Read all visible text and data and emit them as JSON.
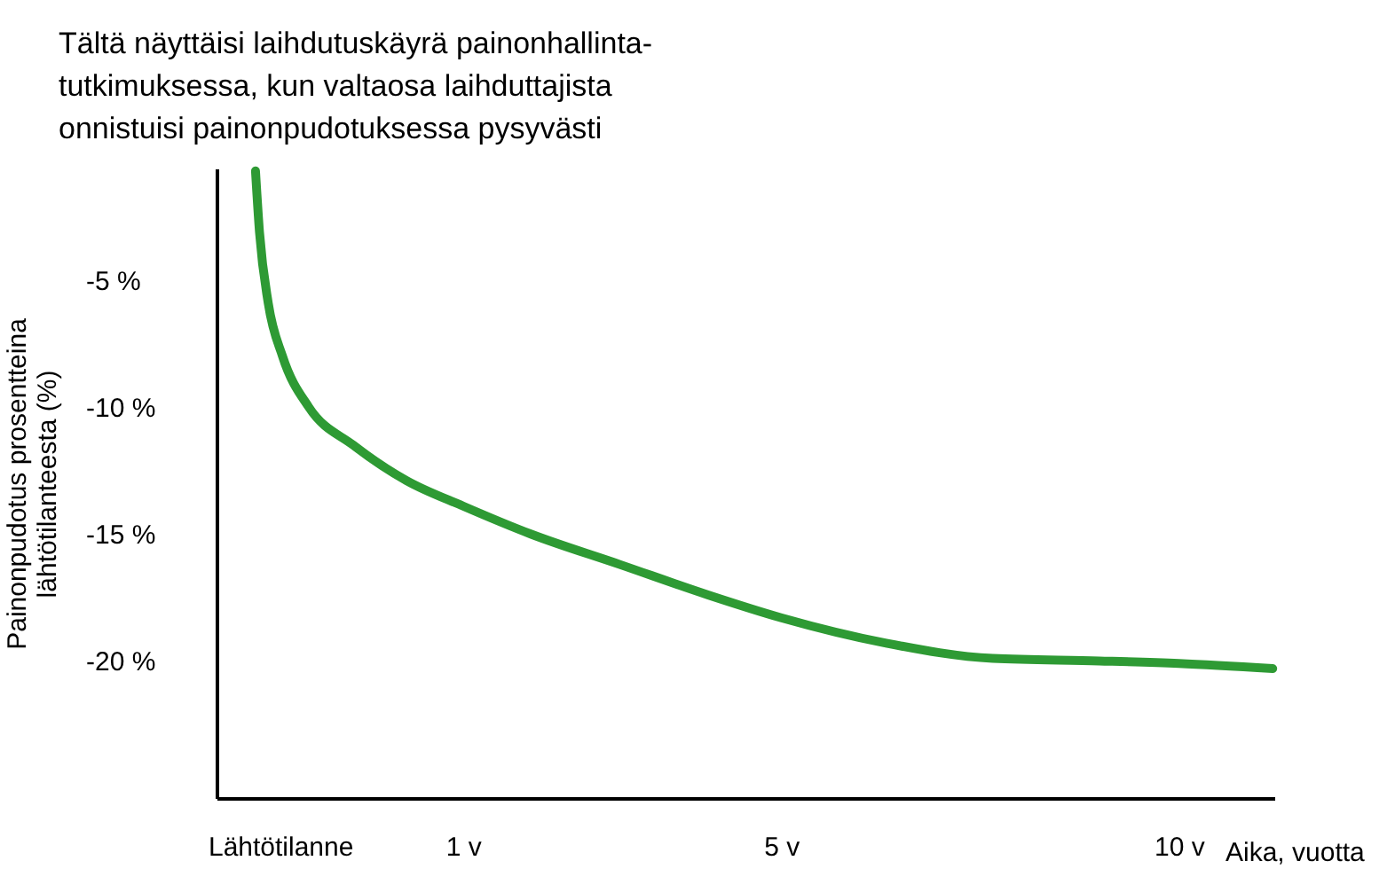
{
  "chart_data": {
    "type": "line",
    "title": "Tältä näyttäisi laihdutuskäyrä painonhallinta-\ntutkimuksessa, kun valtaosa laihduttajista\nonnistuisi painonpudotuksessa pysyvästi",
    "xlabel": "Aika, vuotta",
    "ylabel": "Painonpudotus prosentteina\nlähtötilanteesta (%)",
    "series": [
      {
        "color": "#2e9a34",
        "x": [
          -1.61,
          -1.56,
          -1.45,
          -1.27,
          -0.94,
          -0.38,
          0.29,
          1,
          1.85,
          2.97,
          4.08,
          5,
          6.32,
          7.66,
          9.0,
          10,
          11.18
        ],
        "values": [
          -0.7,
          -3.1,
          -5.9,
          -8.0,
          -10.0,
          -11.5,
          -12.9,
          -13.9,
          -15.0,
          -16.2,
          -17.4,
          -18.3,
          -19.3,
          -19.9,
          -20.0,
          -20.1,
          -20.3
        ]
      }
    ],
    "xlim": [
      -2.1,
      11.2
    ],
    "ylim": [
      -25.4,
      -0.6
    ],
    "xticks": [
      {
        "value": -1.3,
        "label": "Lähtötilanne"
      },
      {
        "value": 1,
        "label": "1 v"
      },
      {
        "value": 5,
        "label": "5 v"
      },
      {
        "value": 10,
        "label": "10 v"
      }
    ],
    "yticks": [
      {
        "value": -5,
        "label": "-5 %"
      },
      {
        "value": -10,
        "label": "-10 %"
      },
      {
        "value": -15,
        "label": "-15 %"
      },
      {
        "value": -20,
        "label": "-20 %"
      }
    ],
    "grid": false,
    "marker": "none",
    "line_style": "solid"
  }
}
